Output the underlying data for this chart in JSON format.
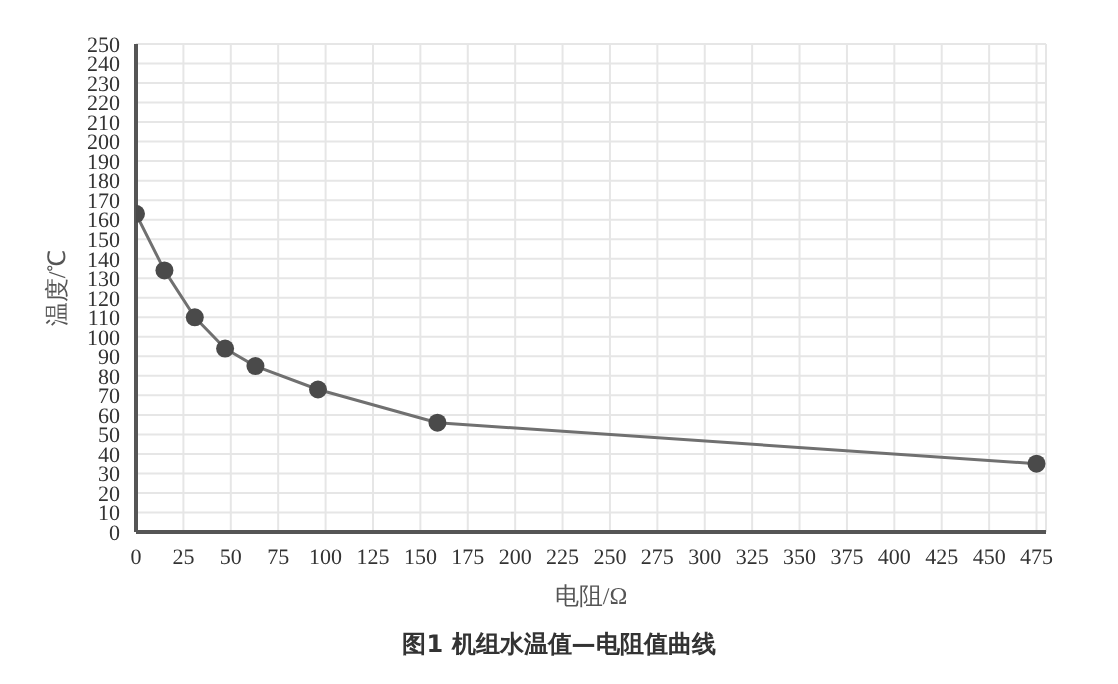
{
  "chart_data": {
    "type": "line",
    "title": "图1   机组水温值—电阻值曲线",
    "xlabel": "电阻/Ω",
    "ylabel": "温度/℃",
    "x": [
      0,
      15,
      31,
      47,
      63,
      96,
      159,
      475
    ],
    "series": [
      {
        "color": "#707070",
        "values": [
          163,
          134,
          110,
          94,
          85,
          73,
          56,
          35
        ]
      }
    ],
    "xlim": [
      0,
      480
    ],
    "xticks": [
      0,
      25,
      50,
      75,
      100,
      125,
      150,
      175,
      200,
      225,
      250,
      275,
      300,
      325,
      350,
      375,
      400,
      425,
      450,
      475
    ],
    "ylim": [
      0,
      250
    ],
    "yticks": [
      0,
      10,
      20,
      30,
      40,
      50,
      60,
      70,
      80,
      90,
      100,
      110,
      120,
      130,
      140,
      150,
      160,
      170,
      180,
      190,
      200,
      210,
      220,
      230,
      240,
      250
    ],
    "grid": true,
    "marker": "circle",
    "line_style": "solid"
  }
}
